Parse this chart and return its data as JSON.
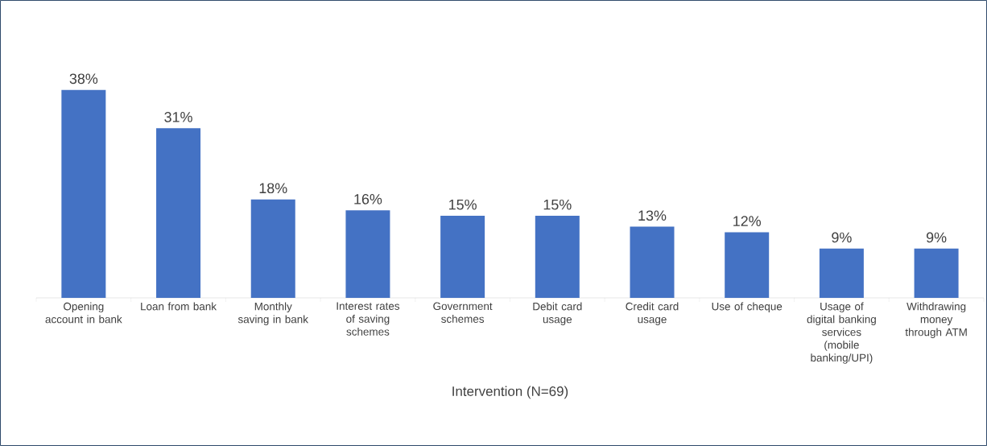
{
  "chart_data": {
    "type": "bar",
    "xlabel": "Intervention (N=69)",
    "categories": [
      "Opening account in bank",
      "Loan from bank",
      "Monthly saving in bank",
      "Interest rates of saving schemes",
      "Government schemes",
      "Debit card usage",
      "Credit card usage",
      "Use of cheque",
      "Usage of digital banking services (mobile banking/UPI)",
      "Withdrawing money through ATM"
    ],
    "values": [
      38,
      31,
      18,
      16,
      15,
      15,
      13,
      12,
      9,
      9
    ],
    "value_labels": [
      "38%",
      "31%",
      "18%",
      "16%",
      "15%",
      "15%",
      "13%",
      "12%",
      "9%",
      "9%"
    ],
    "color": "#4472c4"
  }
}
